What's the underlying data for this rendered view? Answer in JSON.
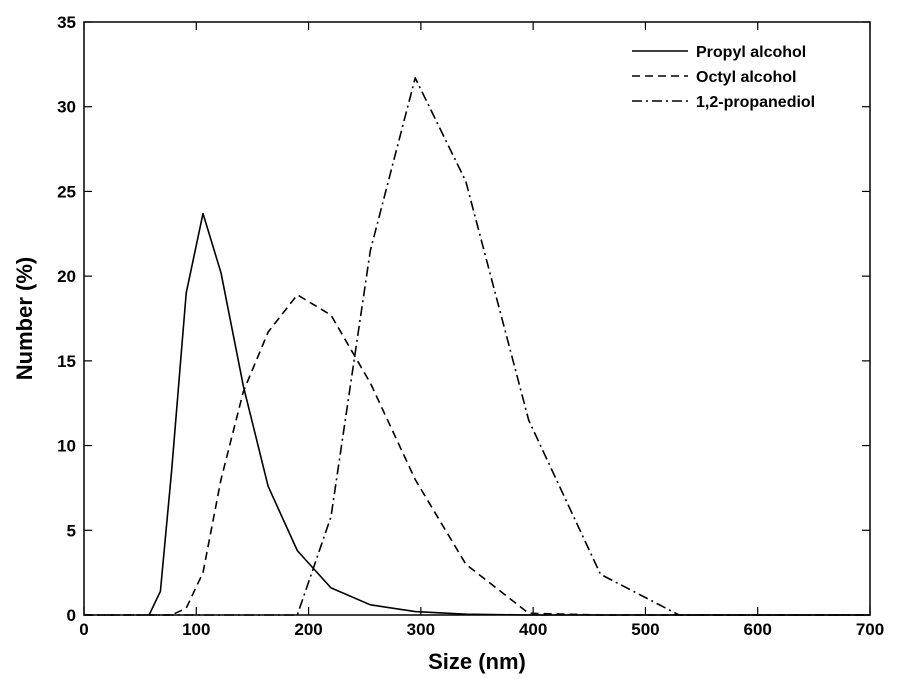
{
  "chart_data": {
    "type": "line",
    "xlabel": "Size (nm)",
    "ylabel": "Number (%)",
    "xlim": [
      0,
      700
    ],
    "ylim": [
      0,
      35
    ],
    "xticks": [
      0,
      100,
      200,
      300,
      400,
      500,
      600,
      700
    ],
    "yticks": [
      0,
      5,
      10,
      15,
      20,
      25,
      30,
      35
    ],
    "grid": false,
    "legend_position": "top-right",
    "series": [
      {
        "name": "Propyl alcohol",
        "line_style": "solid",
        "color": "#000000",
        "x": [
          58,
          68,
          78,
          91,
          106,
          122,
          142,
          164,
          190,
          220,
          255,
          295,
          340,
          396,
          460,
          530,
          600,
          700
        ],
        "y": [
          0,
          1.4,
          8.5,
          19.0,
          23.7,
          20.2,
          13.5,
          7.6,
          3.8,
          1.6,
          0.6,
          0.2,
          0.05,
          0,
          0,
          0,
          0,
          0
        ]
      },
      {
        "name": "Octyl alcohol",
        "line_style": "dashed",
        "color": "#000000",
        "x": [
          0,
          78,
          91,
          106,
          122,
          142,
          164,
          190,
          220,
          255,
          295,
          340,
          396,
          460,
          530,
          600,
          700
        ],
        "y": [
          0,
          0,
          0.4,
          2.5,
          8.0,
          13.2,
          16.7,
          18.9,
          17.7,
          13.7,
          8.0,
          3.0,
          0.1,
          0,
          0,
          0,
          0
        ]
      },
      {
        "name": "1,2-propanediol",
        "line_style": "dash-dot",
        "color": "#000000",
        "x": [
          0,
          190,
          220,
          255,
          295,
          340,
          396,
          460,
          530,
          600,
          700
        ],
        "y": [
          0,
          0,
          5.8,
          21.5,
          31.7,
          25.6,
          11.5,
          2.4,
          0,
          0,
          0
        ]
      }
    ]
  }
}
